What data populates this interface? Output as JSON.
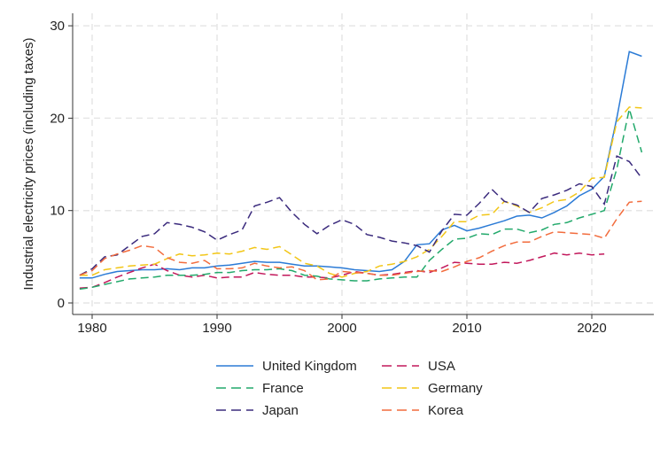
{
  "chart_data": {
    "type": "line",
    "title": "",
    "xlabel": "",
    "ylabel": "Industrial electricity prices (including taxes)",
    "xlim": [
      1978.5,
      2025
    ],
    "ylim": [
      0,
      31.5
    ],
    "xticks": [
      1980,
      1990,
      2000,
      2010,
      2020
    ],
    "yticks": [
      0,
      10,
      20,
      30
    ],
    "grid": true,
    "legend_position": "bottom",
    "x": [
      1979,
      1980,
      1981,
      1982,
      1983,
      1984,
      1985,
      1986,
      1987,
      1988,
      1989,
      1990,
      1991,
      1992,
      1993,
      1994,
      1995,
      1996,
      1997,
      1998,
      1999,
      2000,
      2001,
      2002,
      2003,
      2004,
      2005,
      2006,
      2007,
      2008,
      2009,
      2010,
      2011,
      2012,
      2013,
      2014,
      2015,
      2016,
      2017,
      2018,
      2019,
      2020,
      2021,
      2022,
      2023,
      2024
    ],
    "series": [
      {
        "name": "United Kingdom",
        "color": "#2b7bd6",
        "dash": "solid",
        "values": [
          2.7,
          2.7,
          3.1,
          3.4,
          3.5,
          3.6,
          3.6,
          3.7,
          3.6,
          3.8,
          3.8,
          4.0,
          4.1,
          4.3,
          4.5,
          4.4,
          4.4,
          4.2,
          4.0,
          4.0,
          3.9,
          3.8,
          3.6,
          3.5,
          3.4,
          3.6,
          4.5,
          6.3,
          6.4,
          7.9,
          8.4,
          7.8,
          8.1,
          8.5,
          8.9,
          9.4,
          9.5,
          9.2,
          9.8,
          10.5,
          11.6,
          12.3,
          13.7,
          20.0,
          27.2,
          26.7
        ]
      },
      {
        "name": "USA",
        "color": "#c2185b",
        "dash": "dashed",
        "values": [
          1.6,
          1.7,
          2.2,
          2.8,
          3.3,
          3.8,
          4.2,
          3.5,
          3.0,
          2.8,
          3.0,
          2.7,
          2.8,
          2.8,
          3.3,
          3.1,
          3.0,
          3.0,
          2.8,
          2.8,
          2.7,
          3.0,
          3.4,
          3.2,
          3.0,
          3.1,
          3.3,
          3.5,
          3.3,
          3.8,
          4.4,
          4.3,
          4.2,
          4.2,
          4.4,
          4.3,
          4.6,
          5.0,
          5.4,
          5.2,
          5.4,
          5.2,
          5.3,
          null,
          null,
          null
        ]
      },
      {
        "name": "France",
        "color": "#22a96b",
        "dash": "dashed",
        "values": [
          1.5,
          1.7,
          2.0,
          2.3,
          2.6,
          2.7,
          2.8,
          3.0,
          3.0,
          3.0,
          3.1,
          3.3,
          3.3,
          3.5,
          3.6,
          3.6,
          3.7,
          3.5,
          3.0,
          2.9,
          2.6,
          2.5,
          2.4,
          2.4,
          2.6,
          2.7,
          2.8,
          2.8,
          4.6,
          5.8,
          6.9,
          7.0,
          7.5,
          7.4,
          8.0,
          8.0,
          7.6,
          7.9,
          8.5,
          8.7,
          9.2,
          9.6,
          10.0,
          14.5,
          21.0,
          16.3
        ]
      },
      {
        "name": "Germany",
        "color": "#f2c617",
        "dash": "dashed",
        "values": [
          3.0,
          3.0,
          3.6,
          3.8,
          4.0,
          4.1,
          4.2,
          4.8,
          5.3,
          5.1,
          5.2,
          5.4,
          5.3,
          5.6,
          6.0,
          5.8,
          6.1,
          5.2,
          4.3,
          4.0,
          3.2,
          2.8,
          3.2,
          3.4,
          4.0,
          4.2,
          4.5,
          5.0,
          5.8,
          7.2,
          8.8,
          8.8,
          9.5,
          9.6,
          11.0,
          10.5,
          9.8,
          10.3,
          11.0,
          11.2,
          12.0,
          13.5,
          13.6,
          19.6,
          21.2,
          21.1
        ]
      },
      {
        "name": "Japan",
        "color": "#3b2b7d",
        "dash": "dashed",
        "values": [
          3.0,
          3.7,
          5.0,
          5.2,
          6.2,
          7.2,
          7.5,
          8.7,
          8.5,
          8.2,
          7.7,
          6.8,
          7.4,
          7.9,
          10.5,
          10.9,
          11.4,
          9.8,
          8.5,
          7.5,
          8.4,
          9.0,
          8.5,
          7.4,
          7.1,
          6.7,
          6.5,
          6.2,
          5.5,
          7.8,
          9.6,
          9.5,
          10.8,
          12.3,
          11.0,
          10.6,
          9.8,
          11.3,
          11.7,
          12.2,
          12.9,
          12.6,
          10.7,
          15.9,
          15.3,
          13.5
        ]
      },
      {
        "name": "Korea",
        "color": "#f26c3d",
        "dash": "dashed",
        "values": [
          3.0,
          3.5,
          4.8,
          5.3,
          5.7,
          6.2,
          6.0,
          4.9,
          4.4,
          4.3,
          4.6,
          3.7,
          3.7,
          3.8,
          4.3,
          4.0,
          3.8,
          3.9,
          3.5,
          2.5,
          2.6,
          3.4,
          3.3,
          3.2,
          3.0,
          3.0,
          3.2,
          3.4,
          3.5,
          3.4,
          3.9,
          4.5,
          4.9,
          5.6,
          6.2,
          6.6,
          6.6,
          7.2,
          7.7,
          7.6,
          7.5,
          7.4,
          7.0,
          9.1,
          10.9,
          11.0
        ]
      }
    ]
  }
}
